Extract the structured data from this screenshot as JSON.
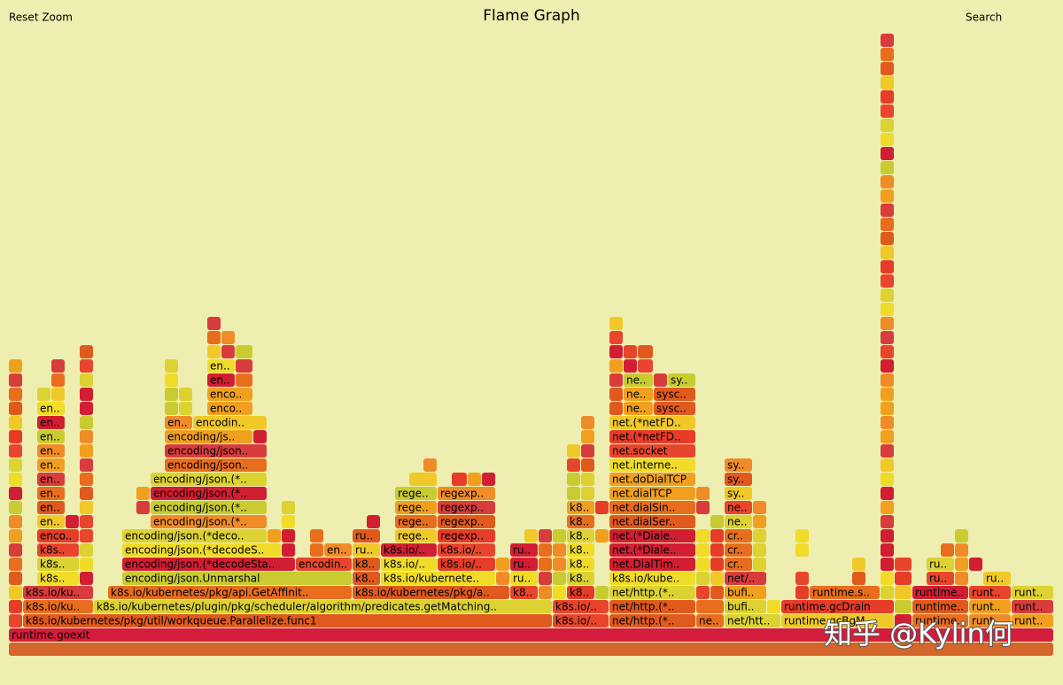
{
  "header": {
    "reset_zoom": "Reset Zoom",
    "title": "Flame Graph",
    "search": "Search"
  },
  "frames": [
    [],
    [
      "runtime.goexit"
    ],
    [
      "k8s.io/kubernetes/pkg/util/workqueue.Parallelize.func1",
      "k8s.io/..",
      "net/http.(*..",
      "ne..",
      "net/htt..",
      "runtime.gcBgM..",
      "runtime..",
      "runt..",
      "runt.."
    ],
    [
      "k8s.io/ku..",
      "k8s.io/kubernetes/plugin/pkg/scheduler/algorithm/predicates.getMatching..",
      "k8s.io/..",
      "net/http.(*..",
      "bufi..",
      "runtime.gcDrain",
      "runtime..",
      "runt..",
      "runt.."
    ],
    [
      "k8s.io/ku..",
      "k8s.io/kubernetes/pkg/api.GetAffinit..",
      "k8s.io/kubernetes/pkg/a..",
      "k8..",
      "k8..",
      "net/http.(*..",
      "bufi..",
      "runtime.s..",
      "runtime..",
      "runt..",
      "runt.."
    ],
    [
      "k8s..",
      "encoding/json.Unmarshal",
      "k8..",
      "k8s.io/kubernete..",
      "ru..",
      "k8..",
      "k8s.io/kube..",
      "net/..",
      "ru..",
      "ru.."
    ],
    [
      "k8s..",
      "encoding/json.(*decodeSta..",
      "encodin..",
      "k8..",
      "k8s.io/..",
      "k8s.io/..",
      "ru..",
      "k8..",
      "net.DialTim..",
      "cr..",
      "ru.."
    ],
    [
      "k8s..",
      "encoding/json.(*decodeS..",
      "en..",
      "ru..",
      "k8s.io/..",
      "k8s.io/..",
      "ru..",
      "k8..",
      "net.(*Diale..",
      "cr.."
    ],
    [
      "enco..",
      "encoding/json.(*deco..",
      "ru..",
      "rege..",
      "regexp..",
      "k8..",
      "net.(*Diale..",
      "cr.."
    ],
    [
      "en..",
      "encoding/json.(*..",
      "rege..",
      "regexp..",
      "k8..",
      "net.dialSer..",
      "ne.."
    ],
    [
      "en..",
      "encoding/json.(*..",
      "rege..",
      "regexp..",
      "k8..",
      "net.dialSin..",
      "ne.."
    ],
    [
      "en..",
      "encoding/json.(*..",
      "rege..",
      "regexp..",
      "net.dialTCP",
      "sy.."
    ],
    [
      "en..",
      "encoding/json.(*..",
      "net.doDialTCP",
      "sy.."
    ],
    [
      "en..",
      "encoding/json..",
      "net.interne..",
      "sy.."
    ],
    [
      "en..",
      "encoding/json..",
      "net.socket"
    ],
    [
      "en..",
      "encoding/js..",
      "net.(*netFD.."
    ],
    [
      "en..",
      "en..",
      "encodin..",
      "net.(*netFD.."
    ],
    [
      "en..",
      "enco..",
      "ne..",
      "sysc.."
    ],
    [
      "enco..",
      "ne..",
      "sysc.."
    ],
    [
      "en..",
      "ne..",
      "sy.."
    ],
    [
      "en.."
    ]
  ],
  "watermark": "知乎 @Kylin何"
}
